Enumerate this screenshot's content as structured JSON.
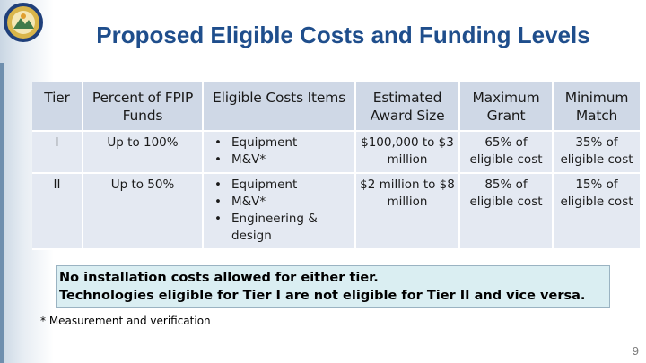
{
  "slide": {
    "title": "Proposed Eligible Costs and Funding Levels",
    "page_number": "9"
  },
  "table": {
    "headers": {
      "tier": "Tier",
      "percent": "Percent of FPIP Funds",
      "items": "Eligible Costs Items",
      "award": "Estimated Award Size",
      "grant": "Maximum Grant",
      "match": "Minimum Match"
    },
    "rows": [
      {
        "tier": "I",
        "percent": "Up to 100%",
        "items": [
          "Equipment",
          "M&V*"
        ],
        "award": "$100,000 to $3 million",
        "grant": "65% of eligible cost",
        "match": "35% of eligible cost"
      },
      {
        "tier": "II",
        "percent": "Up to 50%",
        "items": [
          "Equipment",
          "M&V*",
          "Engineering & design"
        ],
        "award": "$2 million to $8 million",
        "grant": "85% of eligible cost",
        "match": "15% of eligible cost"
      }
    ]
  },
  "note": {
    "line1": "No installation costs allowed for either tier.",
    "line2": "Technologies eligible for Tier I are not eligible for Tier II and vice versa."
  },
  "footnote": "* Measurement and verification",
  "colors": {
    "title": "#1f4e8c",
    "header_fill": "#cfd8e6",
    "row_fill": "#e4e9f2",
    "note_fill": "#daeef2"
  }
}
